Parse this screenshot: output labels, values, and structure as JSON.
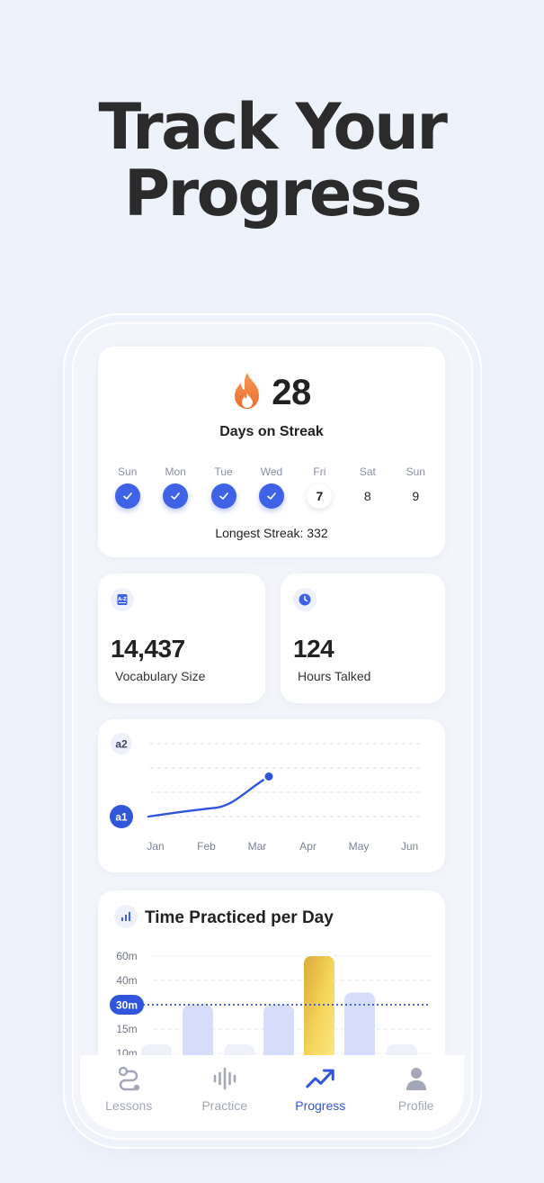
{
  "headline": {
    "line1": "Track Your",
    "line2": "Progress"
  },
  "streak": {
    "count": "28",
    "label": "Days on Streak",
    "longest": "Longest Streak: 332",
    "days": [
      {
        "name": "Sun",
        "num": "",
        "state": "done"
      },
      {
        "name": "Mon",
        "num": "",
        "state": "done"
      },
      {
        "name": "Tue",
        "num": "",
        "state": "done"
      },
      {
        "name": "Wed",
        "num": "",
        "state": "done"
      },
      {
        "name": "Fri",
        "num": "7",
        "state": "today"
      },
      {
        "name": "Sat",
        "num": "8",
        "state": "future"
      },
      {
        "name": "Sun",
        "num": "9",
        "state": "future"
      }
    ]
  },
  "vocab": {
    "value": "14,437",
    "label": "Vocabulary Size",
    "icon": "dictionary-icon"
  },
  "hours": {
    "value": "124",
    "label": "Hours Talked",
    "icon": "clock-icon"
  },
  "level_chart": {
    "levels": [
      "a1",
      "a2"
    ],
    "months": [
      "Jan",
      "Feb",
      "Mar",
      "Apr",
      "May",
      "Jun"
    ]
  },
  "practice": {
    "title": "Time Practiced per Day",
    "icon": "bar-chart-icon",
    "goal_label": "30m"
  },
  "chart_data": [
    {
      "type": "line",
      "title": "",
      "x": [
        "Jan",
        "Feb",
        "Mar"
      ],
      "series": [
        {
          "values": [
            1.0,
            1.12,
            1.55
          ]
        }
      ],
      "y_levels": [
        "a1",
        "a2"
      ],
      "xlim": [
        "Jan",
        "Jun"
      ]
    },
    {
      "type": "bar",
      "title": "Time Practiced per Day",
      "ylabel": "",
      "yticks": [
        "60m",
        "40m",
        "30m",
        "15m",
        "10m"
      ],
      "values": [
        9,
        30,
        9,
        30,
        60,
        35,
        9
      ],
      "goal": 30,
      "highlight_index": 4
    }
  ],
  "tabs": [
    {
      "label": "Lessons",
      "icon": "lessons-path-icon",
      "active": false
    },
    {
      "label": "Practice",
      "icon": "waveform-icon",
      "active": false
    },
    {
      "label": "Progress",
      "icon": "trend-up-icon",
      "active": true
    },
    {
      "label": "Profile",
      "icon": "person-icon",
      "active": false
    }
  ],
  "colors": {
    "accent": "#3f63e6",
    "flame": "#f0733a",
    "gold": "#f2c94c",
    "bar": "#d6ddfb",
    "background": "#eef2fb"
  }
}
